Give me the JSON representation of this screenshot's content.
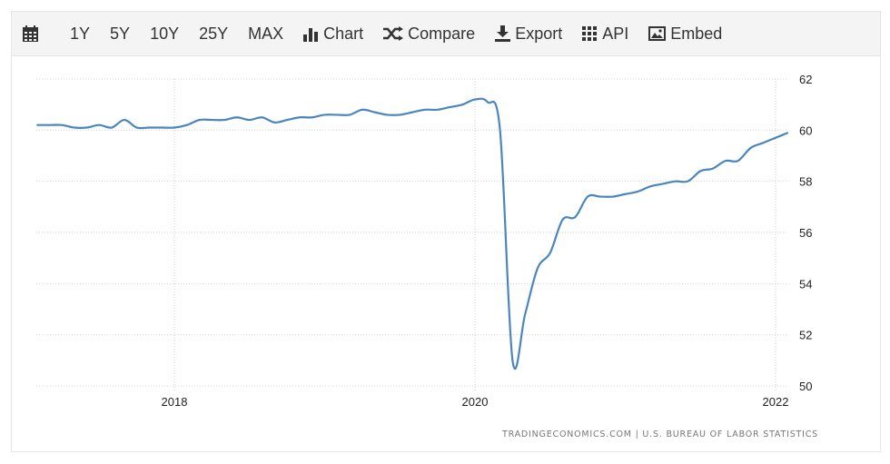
{
  "toolbar": {
    "calendar_icon": "calendar-icon",
    "ranges": [
      "1Y",
      "5Y",
      "10Y",
      "25Y",
      "MAX"
    ],
    "chart": "Chart",
    "compare": "Compare",
    "export": "Export",
    "api": "API",
    "embed": "Embed"
  },
  "source": "TRADINGECONOMICS.COM | U.S. BUREAU OF LABOR STATISTICS",
  "colors": {
    "line": "#4a86bd",
    "grid": "#d0d0d0",
    "toolbar_bg": "#f4f4f4"
  },
  "chart_data": {
    "type": "line",
    "title": "",
    "xlabel": "",
    "ylabel": "",
    "ylim": [
      50,
      62
    ],
    "yticks": [
      "50",
      "52",
      "54",
      "56",
      "58",
      "60",
      "62"
    ],
    "y_axis": "right",
    "xticks": [
      "2018",
      "2020",
      "2022"
    ],
    "grid": true,
    "start": "2017-02",
    "frequency": "monthly",
    "values": [
      60.2,
      60.2,
      60.2,
      60.1,
      60.1,
      60.2,
      60.1,
      60.4,
      60.1,
      60.1,
      60.1,
      60.1,
      60.2,
      60.4,
      60.4,
      60.4,
      60.5,
      60.4,
      60.5,
      60.3,
      60.4,
      60.5,
      60.5,
      60.6,
      60.6,
      60.6,
      60.8,
      60.7,
      60.6,
      60.6,
      60.7,
      60.8,
      60.8,
      60.9,
      61.0,
      61.2,
      61.1,
      60.0,
      51.0,
      52.8,
      54.6,
      55.2,
      56.5,
      56.6,
      57.4,
      57.4,
      57.4,
      57.5,
      57.6,
      57.8,
      57.9,
      58.0,
      58.0,
      58.4,
      58.5,
      58.8,
      58.8,
      59.3,
      59.5,
      59.7,
      59.9
    ]
  }
}
